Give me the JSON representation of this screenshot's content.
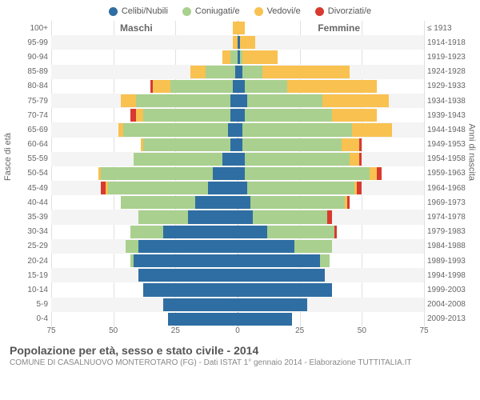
{
  "legend": [
    {
      "label": "Celibi/Nubili",
      "color": "#2f6ea2"
    },
    {
      "label": "Coniugati/e",
      "color": "#a9d08e"
    },
    {
      "label": "Vedovi/e",
      "color": "#f8c150"
    },
    {
      "label": "Divorziati/e",
      "color": "#d83a2f"
    }
  ],
  "gender": {
    "male": "Maschi",
    "female": "Femmine"
  },
  "axis": {
    "left": "Fasce di età",
    "right": "Anni di nascita",
    "xmax": 75,
    "xticks": [
      75,
      50,
      25,
      0,
      25,
      50,
      75
    ]
  },
  "colors": {
    "celibi": "#2f6ea2",
    "coniugati": "#a9d08e",
    "vedovi": "#f8c150",
    "divorziati": "#d83a2f",
    "grid": "#e0e0e0",
    "altrow": "#f4f4f4"
  },
  "title": "Popolazione per età, sesso e stato civile - 2014",
  "subtitle": "COMUNE DI CASALNUOVO MONTEROTARO (FG) - Dati ISTAT 1° gennaio 2014 - Elaborazione TUTTITALIA.IT",
  "rows": [
    {
      "age": "100+",
      "year": "≤ 1913",
      "m": {
        "c": 0,
        "g": 0,
        "v": 2,
        "d": 0
      },
      "f": {
        "c": 0,
        "g": 0,
        "v": 3,
        "d": 0
      }
    },
    {
      "age": "95-99",
      "year": "1914-1918",
      "m": {
        "c": 0,
        "g": 0,
        "v": 2,
        "d": 0
      },
      "f": {
        "c": 1,
        "g": 0,
        "v": 6,
        "d": 0
      }
    },
    {
      "age": "90-94",
      "year": "1919-1923",
      "m": {
        "c": 0,
        "g": 3,
        "v": 3,
        "d": 0
      },
      "f": {
        "c": 1,
        "g": 1,
        "v": 14,
        "d": 0
      }
    },
    {
      "age": "85-89",
      "year": "1924-1928",
      "m": {
        "c": 1,
        "g": 12,
        "v": 6,
        "d": 0
      },
      "f": {
        "c": 2,
        "g": 8,
        "v": 35,
        "d": 0
      }
    },
    {
      "age": "80-84",
      "year": "1929-1933",
      "m": {
        "c": 2,
        "g": 25,
        "v": 7,
        "d": 1
      },
      "f": {
        "c": 3,
        "g": 17,
        "v": 36,
        "d": 0
      }
    },
    {
      "age": "75-79",
      "year": "1934-1938",
      "m": {
        "c": 3,
        "g": 38,
        "v": 6,
        "d": 0
      },
      "f": {
        "c": 4,
        "g": 30,
        "v": 27,
        "d": 0
      }
    },
    {
      "age": "70-74",
      "year": "1939-1943",
      "m": {
        "c": 3,
        "g": 35,
        "v": 3,
        "d": 2
      },
      "f": {
        "c": 3,
        "g": 35,
        "v": 18,
        "d": 0
      }
    },
    {
      "age": "65-69",
      "year": "1944-1948",
      "m": {
        "c": 4,
        "g": 42,
        "v": 2,
        "d": 0
      },
      "f": {
        "c": 2,
        "g": 44,
        "v": 16,
        "d": 0
      }
    },
    {
      "age": "60-64",
      "year": "1949-1953",
      "m": {
        "c": 3,
        "g": 35,
        "v": 1,
        "d": 0
      },
      "f": {
        "c": 2,
        "g": 40,
        "v": 7,
        "d": 1
      }
    },
    {
      "age": "55-59",
      "year": "1954-1958",
      "m": {
        "c": 6,
        "g": 36,
        "v": 0,
        "d": 0
      },
      "f": {
        "c": 3,
        "g": 42,
        "v": 4,
        "d": 1
      }
    },
    {
      "age": "50-54",
      "year": "1959-1963",
      "m": {
        "c": 10,
        "g": 45,
        "v": 1,
        "d": 0
      },
      "f": {
        "c": 3,
        "g": 50,
        "v": 3,
        "d": 2
      }
    },
    {
      "age": "45-49",
      "year": "1964-1968",
      "m": {
        "c": 12,
        "g": 40,
        "v": 1,
        "d": 2
      },
      "f": {
        "c": 4,
        "g": 43,
        "v": 1,
        "d": 2
      }
    },
    {
      "age": "40-44",
      "year": "1969-1973",
      "m": {
        "c": 17,
        "g": 30,
        "v": 0,
        "d": 0
      },
      "f": {
        "c": 5,
        "g": 38,
        "v": 1,
        "d": 1
      }
    },
    {
      "age": "35-39",
      "year": "1974-1978",
      "m": {
        "c": 20,
        "g": 20,
        "v": 0,
        "d": 0
      },
      "f": {
        "c": 6,
        "g": 30,
        "v": 0,
        "d": 2
      }
    },
    {
      "age": "30-34",
      "year": "1979-1983",
      "m": {
        "c": 30,
        "g": 13,
        "v": 0,
        "d": 0
      },
      "f": {
        "c": 12,
        "g": 27,
        "v": 0,
        "d": 1
      }
    },
    {
      "age": "25-29",
      "year": "1984-1988",
      "m": {
        "c": 40,
        "g": 5,
        "v": 0,
        "d": 0
      },
      "f": {
        "c": 23,
        "g": 15,
        "v": 0,
        "d": 0
      }
    },
    {
      "age": "20-24",
      "year": "1989-1993",
      "m": {
        "c": 42,
        "g": 1,
        "v": 0,
        "d": 0
      },
      "f": {
        "c": 33,
        "g": 4,
        "v": 0,
        "d": 0
      }
    },
    {
      "age": "15-19",
      "year": "1994-1998",
      "m": {
        "c": 40,
        "g": 0,
        "v": 0,
        "d": 0
      },
      "f": {
        "c": 35,
        "g": 0,
        "v": 0,
        "d": 0
      }
    },
    {
      "age": "10-14",
      "year": "1999-2003",
      "m": {
        "c": 38,
        "g": 0,
        "v": 0,
        "d": 0
      },
      "f": {
        "c": 38,
        "g": 0,
        "v": 0,
        "d": 0
      }
    },
    {
      "age": "5-9",
      "year": "2004-2008",
      "m": {
        "c": 30,
        "g": 0,
        "v": 0,
        "d": 0
      },
      "f": {
        "c": 28,
        "g": 0,
        "v": 0,
        "d": 0
      }
    },
    {
      "age": "0-4",
      "year": "2009-2013",
      "m": {
        "c": 28,
        "g": 0,
        "v": 0,
        "d": 0
      },
      "f": {
        "c": 22,
        "g": 0,
        "v": 0,
        "d": 0
      }
    }
  ]
}
